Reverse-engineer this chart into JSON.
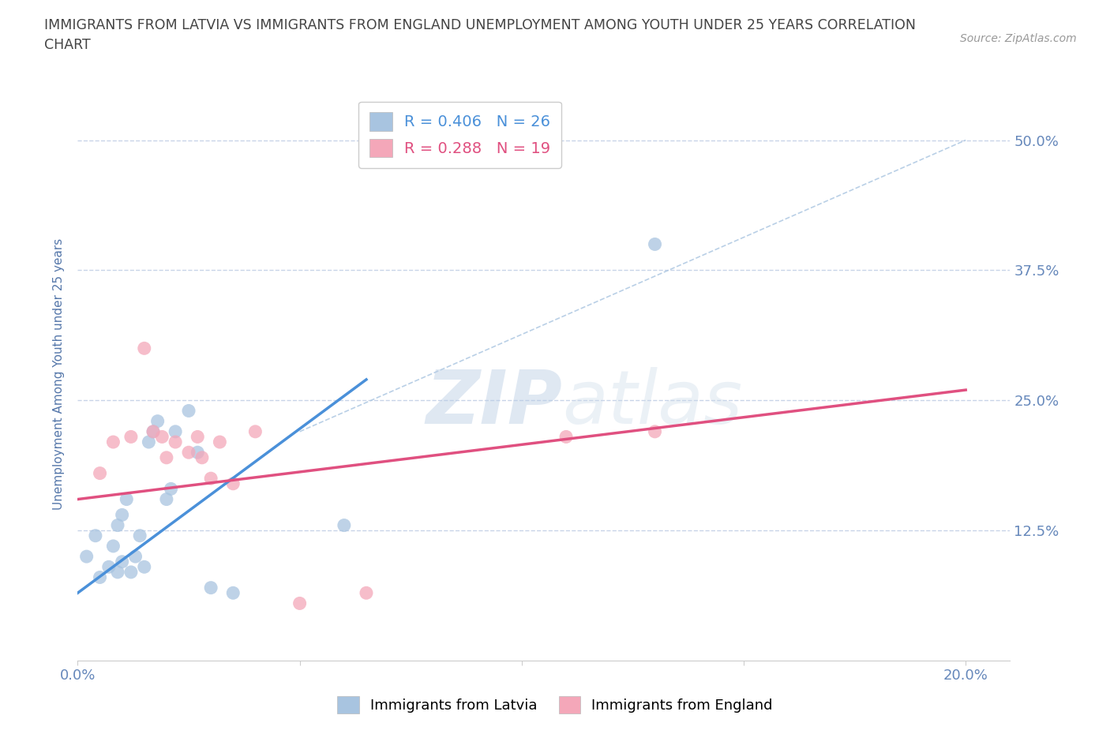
{
  "title": "IMMIGRANTS FROM LATVIA VS IMMIGRANTS FROM ENGLAND UNEMPLOYMENT AMONG YOUTH UNDER 25 YEARS CORRELATION\nCHART",
  "source": "Source: ZipAtlas.com",
  "ylabel": "Unemployment Among Youth under 25 years",
  "xlim": [
    0.0,
    0.21
  ],
  "ylim": [
    0.0,
    0.55
  ],
  "yticks": [
    0.125,
    0.25,
    0.375,
    0.5
  ],
  "ytick_labels": [
    "12.5%",
    "25.0%",
    "37.5%",
    "50.0%"
  ],
  "xticks": [
    0.0,
    0.05,
    0.1,
    0.15,
    0.2
  ],
  "xtick_labels": [
    "0.0%",
    "",
    "",
    "",
    "20.0%"
  ],
  "legend_r1": "R = 0.406   N = 26",
  "legend_r2": "R = 0.288   N = 19",
  "latvia_color": "#a8c4e0",
  "england_color": "#f4a7b9",
  "latvia_line_color": "#4a90d9",
  "england_line_color": "#e05080",
  "ref_line_color": "#a8c4e0",
  "watermark_zip": "ZIP",
  "watermark_atlas": "atlas",
  "latvia_scatter_x": [
    0.002,
    0.004,
    0.005,
    0.007,
    0.008,
    0.009,
    0.009,
    0.01,
    0.01,
    0.011,
    0.012,
    0.013,
    0.014,
    0.015,
    0.016,
    0.017,
    0.018,
    0.02,
    0.021,
    0.022,
    0.025,
    0.027,
    0.03,
    0.035,
    0.06,
    0.13
  ],
  "latvia_scatter_y": [
    0.1,
    0.12,
    0.08,
    0.09,
    0.11,
    0.13,
    0.085,
    0.14,
    0.095,
    0.155,
    0.085,
    0.1,
    0.12,
    0.09,
    0.21,
    0.22,
    0.23,
    0.155,
    0.165,
    0.22,
    0.24,
    0.2,
    0.07,
    0.065,
    0.13,
    0.4
  ],
  "england_scatter_x": [
    0.005,
    0.008,
    0.012,
    0.015,
    0.017,
    0.019,
    0.02,
    0.022,
    0.025,
    0.027,
    0.028,
    0.03,
    0.032,
    0.035,
    0.04,
    0.05,
    0.065,
    0.11,
    0.13
  ],
  "england_scatter_y": [
    0.18,
    0.21,
    0.215,
    0.3,
    0.22,
    0.215,
    0.195,
    0.21,
    0.2,
    0.215,
    0.195,
    0.175,
    0.21,
    0.17,
    0.22,
    0.055,
    0.065,
    0.215,
    0.22
  ],
  "latvia_trend_x": [
    0.0,
    0.065
  ],
  "latvia_trend_y": [
    0.065,
    0.27
  ],
  "england_trend_x": [
    0.0,
    0.2
  ],
  "england_trend_y": [
    0.155,
    0.26
  ],
  "ref_line_x": [
    0.05,
    0.2
  ],
  "ref_line_y": [
    0.22,
    0.5
  ],
  "background_color": "#ffffff",
  "grid_color": "#c8d4e8",
  "title_color": "#444444",
  "axis_label_color": "#5577aa",
  "tick_label_color": "#6688bb",
  "source_color": "#999999",
  "legend_label1": "Immigrants from Latvia",
  "legend_label2": "Immigrants from England"
}
